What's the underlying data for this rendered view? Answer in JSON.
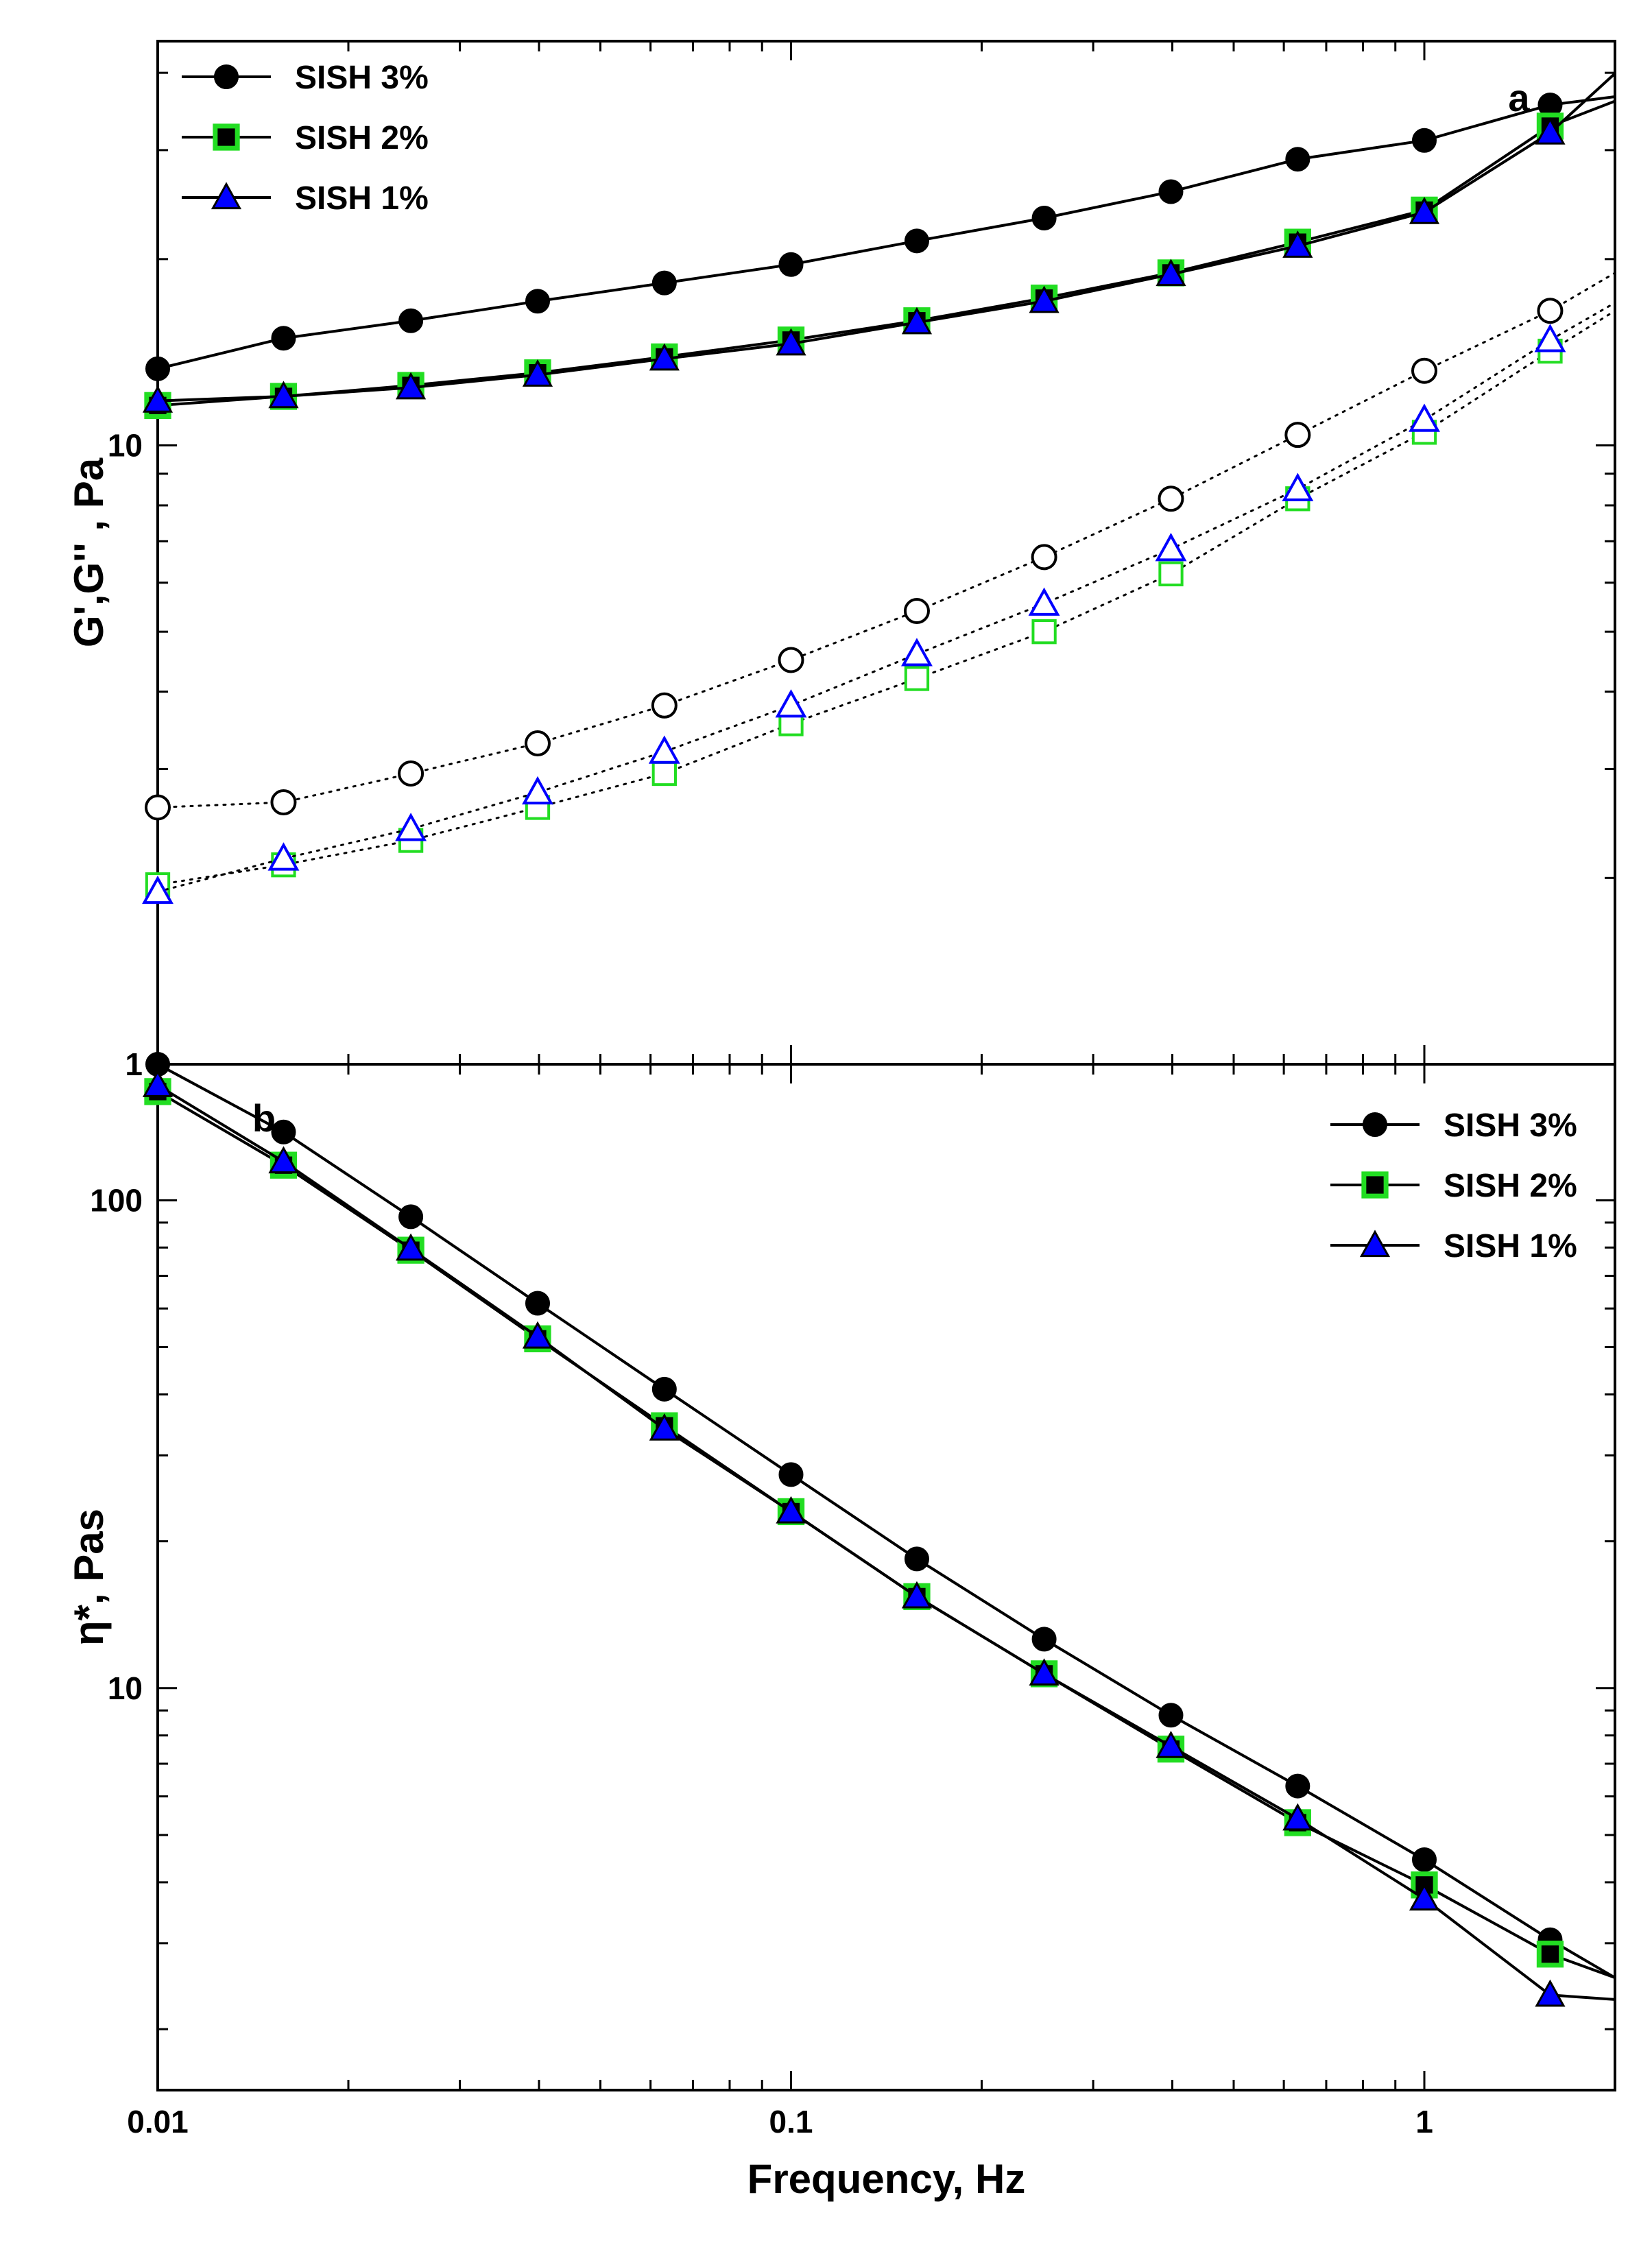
{
  "chart_data": [
    {
      "panel": "a",
      "type": "line",
      "panel_label": "a",
      "xscale": "log",
      "yscale": "log",
      "xlim": [
        0.01,
        2.0
      ],
      "ylim": [
        1,
        45
      ],
      "xlabel": "",
      "ylabel": "G',G'' , Pa",
      "yticks": [
        {
          "v": 1,
          "label": "1"
        },
        {
          "v": 10,
          "label": "10"
        }
      ],
      "legend": {
        "position": "top-left",
        "entries": [
          "SISH 3%",
          "SISH 2%",
          "SISH 1%"
        ]
      },
      "x": [
        0.01,
        0.0158,
        0.0251,
        0.0398,
        0.0631,
        0.1,
        0.158,
        0.251,
        0.398,
        0.631,
        1.0,
        1.58
      ],
      "series": [
        {
          "name": "SISH 3%",
          "kind": "G'",
          "marker": "circle",
          "filled": true,
          "color": "#000000",
          "line": "solid",
          "values": [
            13.3,
            14.9,
            15.9,
            17.1,
            18.3,
            19.6,
            21.4,
            23.3,
            25.7,
            29.0,
            31.1,
            35.5
          ],
          "extend": [
            2.0,
            36.6
          ]
        },
        {
          "name": "SISH 2%",
          "kind": "G'",
          "marker": "square",
          "filled": true,
          "color": "#22dd22",
          "line": "solid",
          "values": [
            11.6,
            12.0,
            12.5,
            13.1,
            13.9,
            14.8,
            15.9,
            17.3,
            19.0,
            21.3,
            24.0,
            32.8
          ],
          "extend": [
            2.0,
            36.0
          ]
        },
        {
          "name": "SISH 1%",
          "kind": "G'",
          "marker": "triangle",
          "filled": true,
          "color": "#0000ff",
          "line": "solid",
          "values": [
            11.8,
            12.0,
            12.4,
            13.0,
            13.8,
            14.6,
            15.8,
            17.1,
            18.9,
            21.0,
            23.8,
            32.0
          ],
          "extend": [
            2.0,
            39.9
          ]
        },
        {
          "name": "SISH 3%",
          "kind": "G''",
          "marker": "circle",
          "filled": false,
          "color": "#000000",
          "line": "dotted",
          "values": [
            2.6,
            2.65,
            2.95,
            3.3,
            3.8,
            4.5,
            5.4,
            6.6,
            8.2,
            10.4,
            13.2,
            16.5
          ],
          "extend": [
            2.0,
            19.0
          ]
        },
        {
          "name": "SISH 2%",
          "kind": "G''",
          "marker": "square",
          "filled": false,
          "color": "#22dd22",
          "line": "dotted",
          "values": [
            1.95,
            2.1,
            2.3,
            2.6,
            2.95,
            3.55,
            4.2,
            5.0,
            6.2,
            8.2,
            10.5,
            14.2
          ],
          "extend": [
            2.0,
            16.5
          ]
        },
        {
          "name": "SISH 1%",
          "kind": "G''",
          "marker": "triangle",
          "filled": false,
          "color": "#0000ff",
          "line": "dotted",
          "values": [
            1.9,
            2.15,
            2.4,
            2.75,
            3.2,
            3.8,
            4.6,
            5.55,
            6.8,
            8.5,
            11.0,
            14.8
          ],
          "extend": [
            2.0,
            17.0
          ]
        }
      ]
    },
    {
      "panel": "b",
      "type": "line",
      "panel_label": "b",
      "xscale": "log",
      "yscale": "log",
      "xlim": [
        0.01,
        2.0
      ],
      "ylim": [
        1.5,
        190
      ],
      "xlabel": "Frequency, Hz",
      "ylabel": "η*, Pas",
      "xticks": [
        {
          "v": 0.01,
          "label": "0.01"
        },
        {
          "v": 0.1,
          "label": "0.1"
        },
        {
          "v": 1,
          "label": "1"
        }
      ],
      "yticks": [
        {
          "v": 10,
          "label": "10"
        },
        {
          "v": 100,
          "label": "100"
        }
      ],
      "legend": {
        "position": "top-right",
        "entries": [
          "SISH 3%",
          "SISH 2%",
          "SISH 1%"
        ]
      },
      "x": [
        0.01,
        0.0158,
        0.0251,
        0.0398,
        0.0631,
        0.1,
        0.158,
        0.251,
        0.398,
        0.631,
        1.0,
        1.58
      ],
      "series": [
        {
          "name": "SISH 3%",
          "marker": "circle",
          "filled": true,
          "color": "#000000",
          "values": [
            190,
            138,
            92.5,
            61.5,
            41,
            27.4,
            18.4,
            12.6,
            8.8,
            6.3,
            4.45,
            3.05
          ],
          "extend": [
            2.0,
            2.55
          ]
        },
        {
          "name": "SISH 2%",
          "marker": "square",
          "filled": true,
          "color": "#22dd22",
          "values": [
            167,
            118,
            79,
            52,
            34.5,
            23,
            15.4,
            10.7,
            7.5,
            5.3,
            3.95,
            2.85
          ],
          "extend": [
            2.0,
            2.55
          ]
        },
        {
          "name": "SISH 1%",
          "marker": "triangle",
          "filled": true,
          "color": "#0000ff",
          "values": [
            172,
            120,
            79.5,
            52.5,
            34,
            23,
            15.4,
            10.7,
            7.6,
            5.4,
            3.7,
            2.35
          ],
          "extend": [
            2.0,
            2.3
          ]
        }
      ]
    }
  ]
}
